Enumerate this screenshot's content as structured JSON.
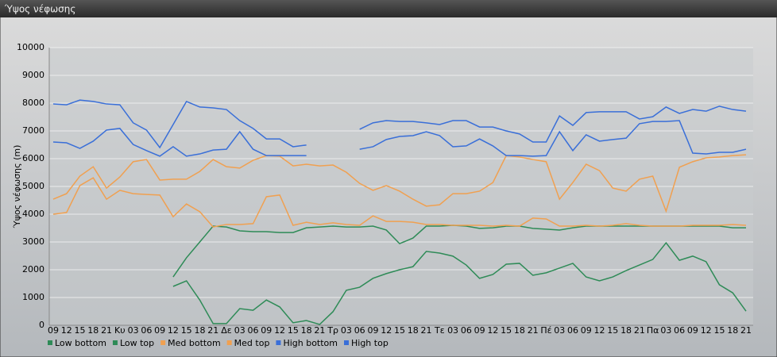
{
  "chart_data": {
    "type": "line",
    "title": "Ύψος νέφωσης",
    "y_label": "Ύψος νέφωσης (m)",
    "categories": [
      "09",
      "12",
      "15",
      "18",
      "21",
      "Κυ",
      "03",
      "06",
      "09",
      "12",
      "15",
      "18",
      "21",
      "Δε",
      "03",
      "06",
      "09",
      "12",
      "15",
      "18",
      "21",
      "Τρ",
      "03",
      "06",
      "09",
      "12",
      "15",
      "18",
      "21",
      "Τε",
      "03",
      "06",
      "09",
      "12",
      "15",
      "18",
      "21",
      "Πέ",
      "03",
      "06",
      "09",
      "12",
      "15",
      "18",
      "21",
      "Πα",
      "03",
      "06",
      "09",
      "12",
      "15",
      "18",
      "21"
    ],
    "ylim": [
      0,
      10000
    ],
    "yticks": [
      0,
      1000,
      2000,
      3000,
      4000,
      5000,
      6000,
      7000,
      8000,
      9000,
      10000
    ],
    "grid": true,
    "series": [
      {
        "name": "Low bottom",
        "color": "#2e8b57",
        "values": [
          null,
          null,
          null,
          null,
          null,
          null,
          null,
          null,
          null,
          1400,
          1600,
          910,
          60,
          60,
          600,
          540,
          910,
          660,
          90,
          170,
          30,
          490,
          1260,
          1370,
          1690,
          1860,
          2000,
          2110,
          2660,
          2600,
          2490,
          2170,
          1690,
          1830,
          2200,
          2230,
          1800,
          1890,
          2060,
          2230,
          1740,
          1600,
          1740,
          1970,
          2170,
          2370,
          2970,
          2340,
          2490,
          2290,
          1460,
          1170,
          510
        ]
      },
      {
        "name": "Low top",
        "color": "#2e8b57",
        "values": [
          null,
          null,
          null,
          null,
          null,
          null,
          null,
          null,
          null,
          1740,
          2430,
          3000,
          3570,
          3540,
          3400,
          3370,
          3370,
          3340,
          3340,
          3510,
          3540,
          3570,
          3540,
          3540,
          3570,
          3430,
          2940,
          3140,
          3570,
          3570,
          3600,
          3570,
          3490,
          3510,
          3570,
          3570,
          3490,
          3460,
          3430,
          3510,
          3570,
          3570,
          3570,
          3570,
          3570,
          3570,
          3570,
          3570,
          3570,
          3570,
          3570,
          3510,
          3510
        ]
      },
      {
        "name": "Med bottom",
        "color": "#f0a050",
        "values": [
          4000,
          4060,
          5030,
          5310,
          4540,
          4860,
          4740,
          4710,
          4690,
          3910,
          4370,
          4090,
          3540,
          3630,
          3630,
          3660,
          4630,
          4690,
          3600,
          3710,
          3630,
          3690,
          3630,
          3600,
          3940,
          3740,
          3740,
          3710,
          3630,
          3630,
          3600,
          3600,
          3600,
          3570,
          3600,
          3570,
          3860,
          3830,
          3570,
          3570,
          3600,
          3570,
          3600,
          3660,
          3600,
          3570,
          3570,
          3570,
          3600,
          3600,
          3600,
          3630,
          3600
        ]
      },
      {
        "name": "Med top",
        "color": "#f0a050",
        "values": [
          4540,
          4740,
          5370,
          5710,
          4940,
          5340,
          5890,
          5970,
          5230,
          5260,
          5260,
          5540,
          5970,
          5710,
          5660,
          5940,
          6110,
          6090,
          5740,
          5800,
          5740,
          5770,
          5510,
          5110,
          4860,
          5030,
          4830,
          4540,
          4290,
          4340,
          4740,
          4740,
          4830,
          5140,
          6110,
          6060,
          5970,
          5890,
          4540,
          5140,
          5800,
          5570,
          4940,
          4830,
          5260,
          5370,
          4110,
          5690,
          5890,
          6030,
          6060,
          6110,
          6140
        ]
      },
      {
        "name": "High bottom",
        "color": "#3a6fd8",
        "values": [
          6600,
          6570,
          6370,
          6630,
          7030,
          7090,
          6510,
          6290,
          6090,
          6430,
          6090,
          6170,
          6310,
          6340,
          6970,
          6340,
          6110,
          6110,
          6110,
          6110,
          null,
          null,
          null,
          6340,
          6430,
          6690,
          6800,
          6830,
          6970,
          6830,
          6430,
          6460,
          6710,
          6460,
          6110,
          6110,
          6090,
          6110,
          6970,
          6290,
          6860,
          6630,
          6690,
          6740,
          7260,
          7340,
          7340,
          7370,
          6200,
          6170,
          6230,
          6230,
          6340
        ]
      },
      {
        "name": "High top",
        "color": "#3a6fd8",
        "values": [
          7970,
          7940,
          8110,
          8060,
          7970,
          7940,
          7290,
          7030,
          6400,
          7230,
          8060,
          7860,
          7830,
          7770,
          7370,
          7090,
          6710,
          6710,
          6430,
          6490,
          null,
          null,
          null,
          7060,
          7290,
          7370,
          7340,
          7340,
          7290,
          7230,
          7370,
          7370,
          7140,
          7140,
          7000,
          6890,
          6600,
          6600,
          7540,
          7200,
          7660,
          7690,
          7690,
          7690,
          7430,
          7510,
          7860,
          7630,
          7770,
          7710,
          7890,
          7770,
          7710
        ]
      }
    ]
  }
}
